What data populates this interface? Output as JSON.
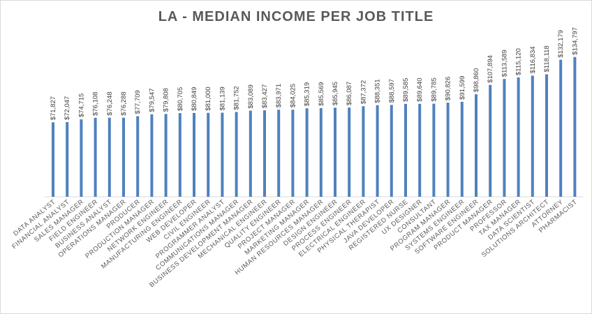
{
  "chart_data": {
    "type": "bar",
    "title": "LA - MEDIAN INCOME PER JOB TITLE",
    "xlabel": "",
    "ylabel": "",
    "ylim": [
      0,
      140000
    ],
    "grid": false,
    "legend": "none",
    "bar_color": "#4f81bd",
    "categories": [
      "DATA ANALYST",
      "FINANCIAL ANALYST",
      "SALES MANAGER",
      "FIELD ENGINEER",
      "BUSINESS ANALYST",
      "OPERATIONS MANAGER",
      "PRODUCER",
      "PRODUCTION MANAGER",
      "NETWORK ENGINEER",
      "MANUFACTURING ENGINEER",
      "WEB DEVELOPER",
      "CIVIL ENGINEER",
      "PROGRAMMER ANALYST",
      "COMMUNICATIONS MANAGER",
      "BUSINESS DEVELOPMENT MANAGER",
      "MECHANICAL ENGINEER",
      "QUALITY ENGINEER",
      "PROJECT MANAGER",
      "MARKETING MANAGER",
      "HUMAN RESOURCES MANAGER",
      "DESIGN ENGINEER",
      "PROCESS ENGINEER",
      "ELECTRICAL ENGINEER",
      "PHYSICAL THERAPIST",
      "JAVA DEVELOPER",
      "REGISTERED NURSE",
      "UX DESIGNER",
      "CONSULTANT",
      "PROGRAM MANAGER",
      "SYSTEMS ENGINEER",
      "SOFTWARE ENGINEER",
      "PRODUCT MANAGER",
      "PROFESSOR",
      "TAX MANAGER",
      "DATA SCIENTIST",
      "SOLUTIONS ARCHITECT",
      "ATTORNEY",
      "PHARMACIST"
    ],
    "values": [
      71827,
      72047,
      74715,
      76108,
      76248,
      76288,
      77709,
      79547,
      79808,
      80705,
      80849,
      81000,
      81139,
      81752,
      83089,
      83427,
      83971,
      84025,
      85319,
      85569,
      85945,
      86087,
      87372,
      88351,
      88597,
      89585,
      89640,
      89785,
      90826,
      91599,
      98860,
      107894,
      113589,
      115120,
      116834,
      118118,
      132179,
      134797
    ],
    "data_labels": [
      "$71,827",
      "$72,047",
      "$74,715",
      "$76,108",
      "$76,248",
      "$76,288",
      "$77,709",
      "$79,547",
      "$79,808",
      "$80,705",
      "$80,849",
      "$81,000",
      "$81,139",
      "$81,752",
      "$83,089",
      "$83,427",
      "$83,971",
      "$84,025",
      "$85,319",
      "$85,569",
      "$85,945",
      "$86,087",
      "$87,372",
      "$88,351",
      "$88,597",
      "$89,585",
      "$89,640",
      "$89,785",
      "$90,826",
      "$91,599",
      "$98,860",
      "$107,894",
      "$113,589",
      "$115,120",
      "$116,834",
      "$118,118",
      "$132,179",
      "$134,797"
    ]
  }
}
